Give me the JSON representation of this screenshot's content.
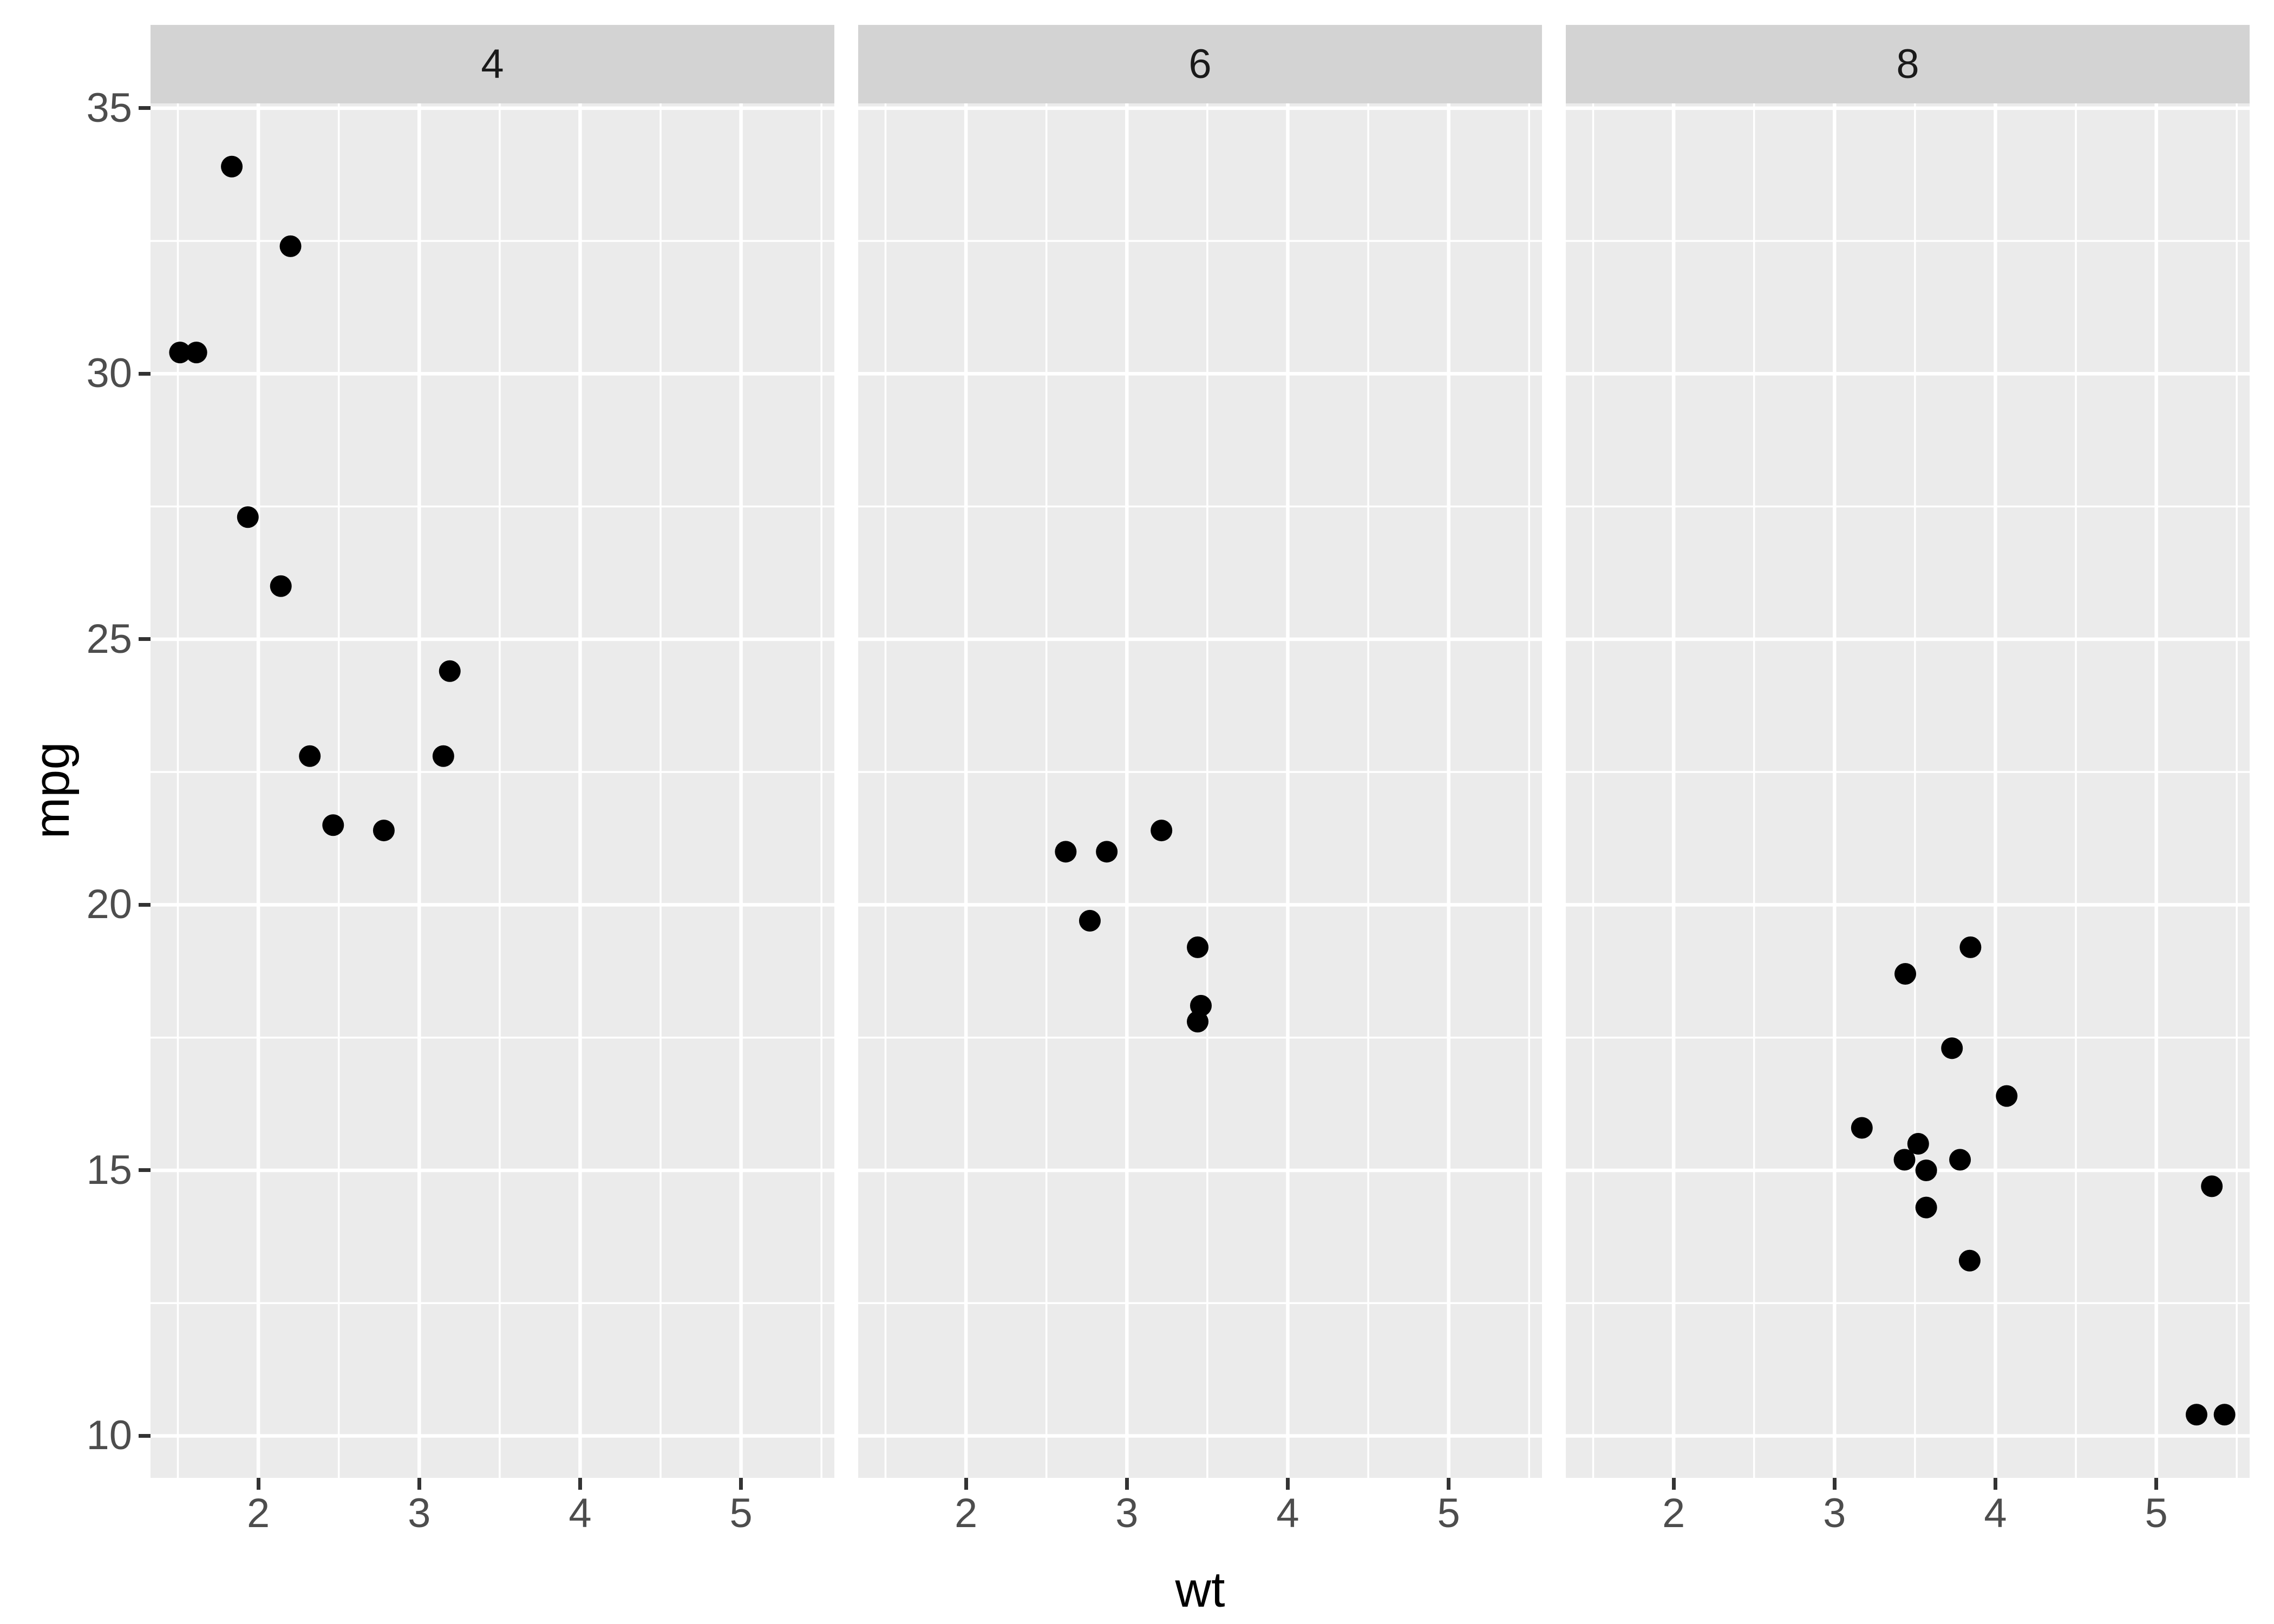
{
  "chart_data": {
    "type": "scatter",
    "title": "",
    "xlabel": "wt",
    "ylabel": "mpg",
    "legend_position": "none",
    "grid": true,
    "xlim": [
      1.33,
      5.58
    ],
    "ylim": [
      9.21,
      35.09
    ],
    "x_major_ticks": [
      2,
      3,
      4,
      5
    ],
    "x_minor_ticks": [
      1.5,
      2.5,
      3.5,
      4.5,
      5.5
    ],
    "y_major_ticks": [
      10,
      15,
      20,
      25,
      30,
      35
    ],
    "y_minor_ticks": [
      12.5,
      17.5,
      22.5,
      27.5,
      32.5
    ],
    "facets": [
      {
        "label": "4",
        "points": [
          [
            1.513,
            30.4
          ],
          [
            1.615,
            30.4
          ],
          [
            1.835,
            33.9
          ],
          [
            1.935,
            27.3
          ],
          [
            2.14,
            26.0
          ],
          [
            2.2,
            32.4
          ],
          [
            2.32,
            22.8
          ],
          [
            2.465,
            21.5
          ],
          [
            2.78,
            21.4
          ],
          [
            3.15,
            22.8
          ],
          [
            3.19,
            24.4
          ]
        ]
      },
      {
        "label": "6",
        "points": [
          [
            2.62,
            21.0
          ],
          [
            2.77,
            19.7
          ],
          [
            2.875,
            21.0
          ],
          [
            3.215,
            21.4
          ],
          [
            3.44,
            19.2
          ],
          [
            3.44,
            17.8
          ],
          [
            3.46,
            18.1
          ]
        ]
      },
      {
        "label": "8",
        "points": [
          [
            3.17,
            15.8
          ],
          [
            3.435,
            15.2
          ],
          [
            3.44,
            18.7
          ],
          [
            3.52,
            15.5
          ],
          [
            3.57,
            14.3
          ],
          [
            3.57,
            15.0
          ],
          [
            3.73,
            17.3
          ],
          [
            3.78,
            15.2
          ],
          [
            3.84,
            13.3
          ],
          [
            3.845,
            19.2
          ],
          [
            4.07,
            16.4
          ],
          [
            5.25,
            10.4
          ],
          [
            5.345,
            14.7
          ],
          [
            5.424,
            10.4
          ]
        ]
      }
    ],
    "colors": {
      "figure_background": "#ffffff",
      "panel_background": "#ebebeb",
      "strip_background": "#d3d3d3",
      "gridline": "#ffffff",
      "point": "#000000",
      "axis_text": "#4d4d4d",
      "strip_text": "#1a1a1a",
      "axis_title": "#000000",
      "tick_mark": "#333333"
    }
  }
}
